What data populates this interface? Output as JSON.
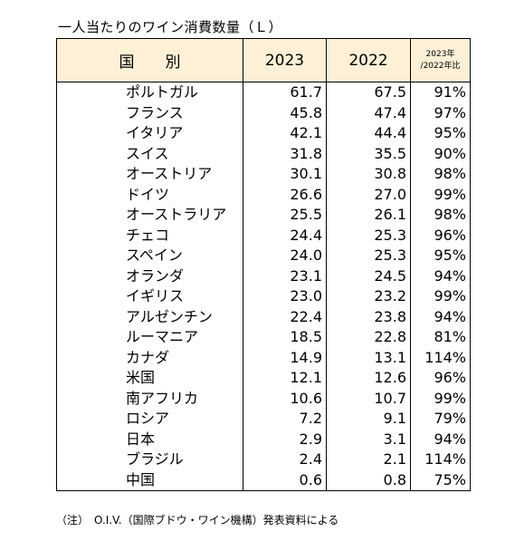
{
  "title": "一人当たりのワイン消費数量（Ｌ）",
  "table": {
    "header": [
      "国　　別",
      "2023",
      "2022",
      [
        "2023年",
        "/2022年比"
      ]
    ],
    "rows": [
      [
        "ポルトガル",
        "61.7",
        "67.5",
        "91%"
      ],
      [
        "フランス",
        "45.8",
        "47.4",
        "97%"
      ],
      [
        "イタリア",
        "42.1",
        "44.4",
        "95%"
      ],
      [
        "スイス",
        "31.8",
        "35.5",
        "90%"
      ],
      [
        "オーストリア",
        "30.1",
        "30.8",
        "98%"
      ],
      [
        "ドイツ",
        "26.6",
        "27.0",
        "99%"
      ],
      [
        "オーストラリア",
        "25.5",
        "26.1",
        "98%"
      ],
      [
        "チェコ",
        "24.4",
        "25.3",
        "96%"
      ],
      [
        "スペイン",
        "24.0",
        "25.3",
        "95%"
      ],
      [
        "オランダ",
        "23.1",
        "24.5",
        "94%"
      ],
      [
        "イギリス",
        "23.0",
        "23.2",
        "99%"
      ],
      [
        "アルゼンチン",
        "22.4",
        "23.8",
        "94%"
      ],
      [
        "ルーマニア",
        "18.5",
        "22.8",
        "81%"
      ],
      [
        "カナダ",
        "14.9",
        "13.1",
        "114%"
      ],
      [
        "米国",
        "12.1",
        "12.6",
        "96%"
      ],
      [
        "南アフリカ",
        "10.6",
        "10.7",
        "99%"
      ],
      [
        "ロシア",
        "7.2",
        "9.1",
        "79%"
      ],
      [
        "日本",
        "2.9",
        "3.1",
        "94%"
      ],
      [
        "ブラジル",
        "2.4",
        "2.1",
        "114%"
      ],
      [
        "中国",
        "0.6",
        "0.8",
        "75%"
      ]
    ]
  },
  "note": "（注）　O.I.V.（国際ブドウ・ワイン機構）発表資料による"
}
